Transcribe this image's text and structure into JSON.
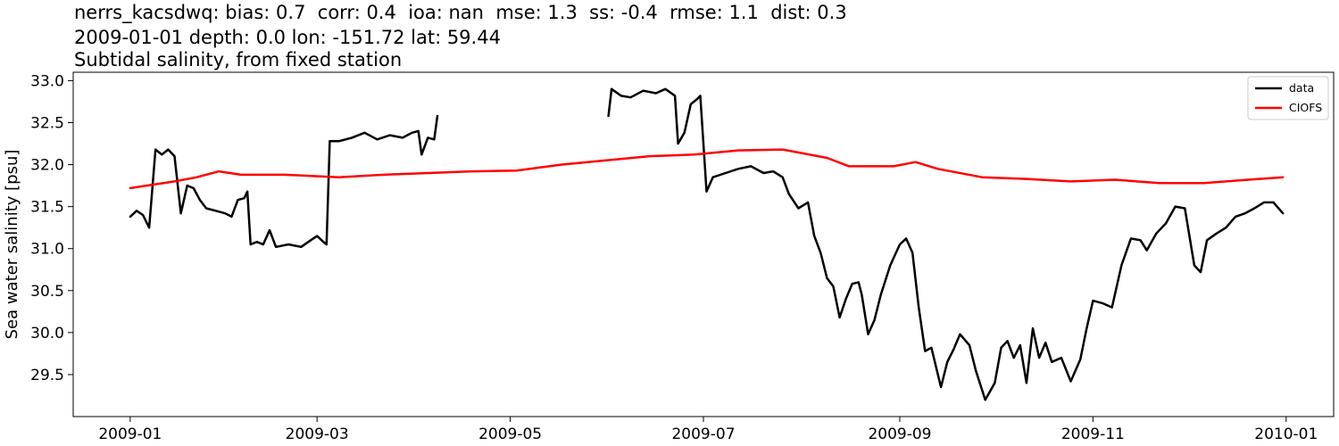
{
  "header": {
    "line1": "nerrs_kacsdwq: bias: 0.7  corr: 0.4  ioa: nan  mse: 1.3  ss: -0.4  rmse: 1.1  dist: 0.3",
    "line2": "2009-01-01 depth: 0.0 lon: -151.72 lat: 59.44",
    "line3": "Subtidal salinity, from fixed station"
  },
  "chart_data": {
    "type": "line",
    "title": "nerrs_kacsdwq: bias: 0.7  corr: 0.4  ioa: nan  mse: 1.3  ss: -0.4  rmse: 1.1  dist: 0.3",
    "xlabel": "",
    "ylabel": "Sea water salinity [psu]",
    "x_range": [
      "2008-12-14",
      "2010-01-16"
    ],
    "ylim": [
      29.0,
      33.1
    ],
    "x_ticks": [
      "2009-01",
      "2009-03",
      "2009-05",
      "2009-07",
      "2009-09",
      "2009-11",
      "2010-01"
    ],
    "y_ticks": [
      29.5,
      30.0,
      30.5,
      31.0,
      31.5,
      32.0,
      32.5,
      33.0
    ],
    "grid": false,
    "legend": "top-right",
    "series": [
      {
        "name": "data",
        "color": "#000000",
        "segments": [
          [
            [
              "2009-01-01",
              31.38
            ],
            [
              "2009-01-03",
              31.45
            ],
            [
              "2009-01-05",
              31.4
            ],
            [
              "2009-01-07",
              31.25
            ],
            [
              "2009-01-09",
              32.18
            ],
            [
              "2009-01-11",
              32.12
            ],
            [
              "2009-01-13",
              32.18
            ],
            [
              "2009-01-15",
              32.1
            ],
            [
              "2009-01-17",
              31.42
            ],
            [
              "2009-01-19",
              31.75
            ],
            [
              "2009-01-21",
              31.72
            ],
            [
              "2009-01-23",
              31.58
            ],
            [
              "2009-01-25",
              31.48
            ],
            [
              "2009-01-28",
              31.45
            ],
            [
              "2009-01-31",
              31.42
            ],
            [
              "2009-02-02",
              31.38
            ],
            [
              "2009-02-04",
              31.58
            ],
            [
              "2009-02-06",
              31.6
            ],
            [
              "2009-02-07",
              31.68
            ],
            [
              "2009-02-08",
              31.05
            ],
            [
              "2009-02-10",
              31.08
            ],
            [
              "2009-02-12",
              31.05
            ],
            [
              "2009-02-14",
              31.22
            ],
            [
              "2009-02-16",
              31.02
            ],
            [
              "2009-02-20",
              31.05
            ],
            [
              "2009-02-24",
              31.02
            ],
            [
              "2009-02-27",
              31.1
            ],
            [
              "2009-03-01",
              31.15
            ],
            [
              "2009-03-03",
              31.08
            ],
            [
              "2009-03-04",
              31.05
            ],
            [
              "2009-03-05",
              32.28
            ],
            [
              "2009-03-08",
              32.28
            ],
            [
              "2009-03-12",
              32.32
            ],
            [
              "2009-03-16",
              32.38
            ],
            [
              "2009-03-20",
              32.3
            ],
            [
              "2009-03-24",
              32.35
            ],
            [
              "2009-03-28",
              32.32
            ],
            [
              "2009-03-31",
              32.38
            ],
            [
              "2009-04-02",
              32.4
            ],
            [
              "2009-04-03",
              32.12
            ],
            [
              "2009-04-05",
              32.32
            ],
            [
              "2009-04-07",
              32.3
            ],
            [
              "2009-04-08",
              32.58
            ]
          ],
          [
            [
              "2009-06-01",
              32.58
            ],
            [
              "2009-06-02",
              32.9
            ],
            [
              "2009-06-05",
              32.82
            ],
            [
              "2009-06-08",
              32.8
            ],
            [
              "2009-06-12",
              32.88
            ],
            [
              "2009-06-16",
              32.85
            ],
            [
              "2009-06-19",
              32.9
            ],
            [
              "2009-06-22",
              32.82
            ],
            [
              "2009-06-23",
              32.25
            ],
            [
              "2009-06-25",
              32.38
            ],
            [
              "2009-06-27",
              32.72
            ],
            [
              "2009-06-29",
              32.78
            ],
            [
              "2009-06-30",
              32.82
            ],
            [
              "2009-07-02",
              31.68
            ],
            [
              "2009-07-04",
              31.85
            ],
            [
              "2009-07-08",
              31.9
            ],
            [
              "2009-07-12",
              31.95
            ],
            [
              "2009-07-16",
              31.98
            ],
            [
              "2009-07-20",
              31.9
            ],
            [
              "2009-07-23",
              31.92
            ],
            [
              "2009-07-26",
              31.85
            ],
            [
              "2009-07-28",
              31.65
            ],
            [
              "2009-07-31",
              31.48
            ],
            [
              "2009-08-03",
              31.55
            ],
            [
              "2009-08-05",
              31.15
            ],
            [
              "2009-08-07",
              30.95
            ],
            [
              "2009-08-09",
              30.65
            ],
            [
              "2009-08-11",
              30.55
            ],
            [
              "2009-08-13",
              30.18
            ],
            [
              "2009-08-15",
              30.4
            ],
            [
              "2009-08-17",
              30.58
            ],
            [
              "2009-08-19",
              30.6
            ],
            [
              "2009-08-20",
              30.45
            ],
            [
              "2009-08-22",
              29.98
            ],
            [
              "2009-08-24",
              30.15
            ],
            [
              "2009-08-26",
              30.45
            ],
            [
              "2009-08-29",
              30.8
            ],
            [
              "2009-09-01",
              31.05
            ],
            [
              "2009-09-03",
              31.12
            ],
            [
              "2009-09-05",
              30.95
            ],
            [
              "2009-09-07",
              30.3
            ],
            [
              "2009-09-09",
              29.78
            ],
            [
              "2009-09-11",
              29.82
            ],
            [
              "2009-09-14",
              29.35
            ],
            [
              "2009-09-16",
              29.65
            ],
            [
              "2009-09-18",
              29.8
            ],
            [
              "2009-09-20",
              29.98
            ],
            [
              "2009-09-23",
              29.85
            ],
            [
              "2009-09-25",
              29.55
            ],
            [
              "2009-09-28",
              29.2
            ],
            [
              "2009-10-01",
              29.4
            ],
            [
              "2009-10-03",
              29.82
            ],
            [
              "2009-10-05",
              29.9
            ],
            [
              "2009-10-07",
              29.7
            ],
            [
              "2009-10-09",
              29.85
            ],
            [
              "2009-10-11",
              29.4
            ],
            [
              "2009-10-13",
              30.05
            ],
            [
              "2009-10-15",
              29.7
            ],
            [
              "2009-10-17",
              29.88
            ],
            [
              "2009-10-19",
              29.65
            ],
            [
              "2009-10-22",
              29.7
            ],
            [
              "2009-10-25",
              29.42
            ],
            [
              "2009-10-28",
              29.68
            ],
            [
              "2009-10-30",
              30.05
            ],
            [
              "2009-11-01",
              30.38
            ],
            [
              "2009-11-04",
              30.35
            ],
            [
              "2009-11-07",
              30.3
            ],
            [
              "2009-11-10",
              30.8
            ],
            [
              "2009-11-13",
              31.12
            ],
            [
              "2009-11-16",
              31.1
            ],
            [
              "2009-11-18",
              30.98
            ],
            [
              "2009-11-21",
              31.18
            ],
            [
              "2009-11-24",
              31.3
            ],
            [
              "2009-11-27",
              31.5
            ],
            [
              "2009-11-30",
              31.48
            ],
            [
              "2009-12-03",
              30.8
            ],
            [
              "2009-12-05",
              30.72
            ],
            [
              "2009-12-07",
              31.1
            ],
            [
              "2009-12-10",
              31.18
            ],
            [
              "2009-12-13",
              31.25
            ],
            [
              "2009-12-16",
              31.38
            ],
            [
              "2009-12-19",
              31.42
            ],
            [
              "2009-12-22",
              31.48
            ],
            [
              "2009-12-25",
              31.55
            ],
            [
              "2009-12-28",
              31.55
            ],
            [
              "2009-12-31",
              31.42
            ]
          ]
        ]
      },
      {
        "name": "CIOFS",
        "color": "#ff0000",
        "segments": [
          [
            [
              "2009-01-01",
              31.72
            ],
            [
              "2009-01-15",
              31.8
            ],
            [
              "2009-01-22",
              31.85
            ],
            [
              "2009-01-29",
              31.92
            ],
            [
              "2009-02-05",
              31.88
            ],
            [
              "2009-02-19",
              31.88
            ],
            [
              "2009-03-08",
              31.85
            ],
            [
              "2009-03-22",
              31.88
            ],
            [
              "2009-04-05",
              31.9
            ],
            [
              "2009-04-19",
              31.92
            ],
            [
              "2009-05-03",
              31.93
            ],
            [
              "2009-05-17",
              32.0
            ],
            [
              "2009-05-31",
              32.05
            ],
            [
              "2009-06-14",
              32.1
            ],
            [
              "2009-06-28",
              32.12
            ],
            [
              "2009-07-12",
              32.17
            ],
            [
              "2009-07-26",
              32.18
            ],
            [
              "2009-08-09",
              32.08
            ],
            [
              "2009-08-16",
              31.98
            ],
            [
              "2009-08-30",
              31.98
            ],
            [
              "2009-09-06",
              32.03
            ],
            [
              "2009-09-13",
              31.95
            ],
            [
              "2009-09-27",
              31.85
            ],
            [
              "2009-10-11",
              31.83
            ],
            [
              "2009-10-25",
              31.8
            ],
            [
              "2009-11-08",
              31.82
            ],
            [
              "2009-11-22",
              31.78
            ],
            [
              "2009-12-06",
              31.78
            ],
            [
              "2009-12-20",
              31.82
            ],
            [
              "2009-12-31",
              31.85
            ]
          ]
        ]
      }
    ]
  }
}
